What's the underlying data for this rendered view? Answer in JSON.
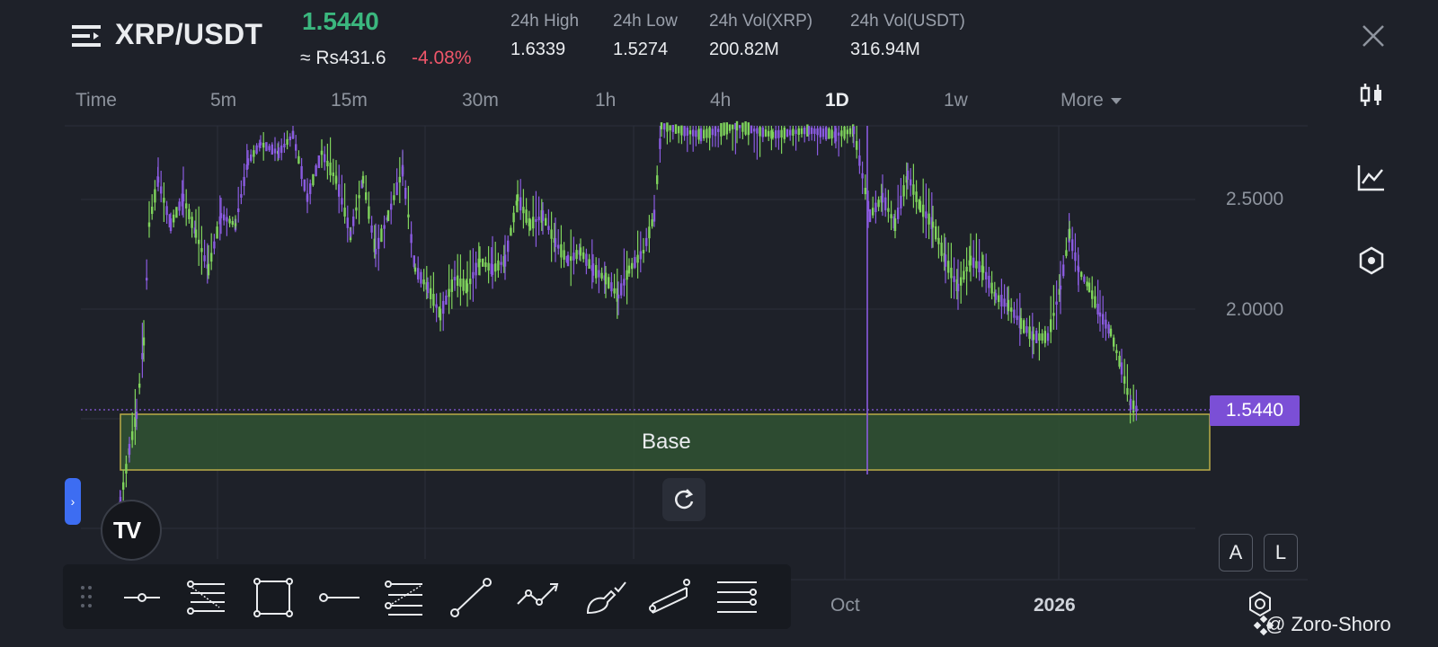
{
  "header": {
    "pair": "XRP/USDT",
    "last_price": "1.5440",
    "approx_local": "≈ Rs431.6",
    "change_pct": "-4.08%",
    "stats": [
      {
        "label": "24h High",
        "value": "1.6339"
      },
      {
        "label": "24h Low",
        "value": "1.5274"
      },
      {
        "label": "24h Vol(XRP)",
        "value": "200.82M"
      },
      {
        "label": "24h Vol(USDT)",
        "value": "316.94M"
      }
    ]
  },
  "tabs": [
    {
      "label": "Time"
    },
    {
      "label": "5m"
    },
    {
      "label": "15m"
    },
    {
      "label": "30m"
    },
    {
      "label": "1h"
    },
    {
      "label": "4h"
    },
    {
      "label": "1D",
      "active": true
    },
    {
      "label": "1w"
    },
    {
      "label": "More"
    }
  ],
  "chart": {
    "price_tag": "1.5440",
    "y_axis": [
      "2.5000",
      "2.0000"
    ],
    "x_axis": [
      "Oct",
      "2026"
    ],
    "zone_label": "Base",
    "up_color": "#7fd35c",
    "down_color": "#8a5be0"
  },
  "buttons": {
    "alert": "A",
    "log": "L",
    "side_handle": "›",
    "tv_logo": "TV"
  },
  "watermark": "@ Zoro-Shoro",
  "icons": {
    "menu": "menu-icon",
    "close": "close-icon",
    "candles": "candlestick-icon",
    "indicator": "indicator-icon",
    "hex": "hex-icon",
    "reset": "reset-icon",
    "settings": "settings-icon"
  },
  "colors": {
    "background": "#1e2129",
    "up": "#3bb77e",
    "down": "#f0566a",
    "accent": "#7b4fd6",
    "zone": "#2f4f32"
  }
}
